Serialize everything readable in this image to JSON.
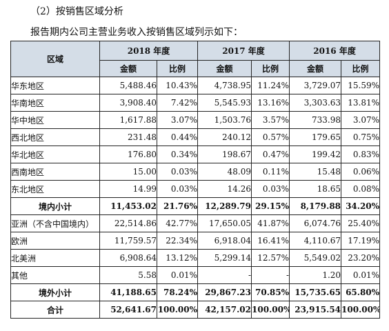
{
  "heading": "（2）按销售区域分析",
  "intro": "报告期内公司主营业务收入按销售区域列示如下：",
  "table": {
    "region_header": "区域",
    "years": [
      "2018 年度",
      "2017 年度",
      "2016 年度"
    ],
    "amount_label": "金额",
    "ratio_label": "比例",
    "rows": [
      {
        "region": "华东地区",
        "cells": [
          "5,488.46",
          "10.43%",
          "4,738.95",
          "11.24%",
          "3,729.07",
          "15.59%"
        ],
        "subtotal": false
      },
      {
        "region": "华南地区",
        "cells": [
          "3,908.40",
          "7.42%",
          "5,545.93",
          "13.16%",
          "3,303.63",
          "13.81%"
        ],
        "subtotal": false
      },
      {
        "region": "华中地区",
        "cells": [
          "1,617.88",
          "3.07%",
          "1,503.76",
          "3.57%",
          "733.98",
          "3.07%"
        ],
        "subtotal": false
      },
      {
        "region": "西北地区",
        "cells": [
          "231.48",
          "0.44%",
          "240.12",
          "0.57%",
          "179.65",
          "0.75%"
        ],
        "subtotal": false
      },
      {
        "region": "华北地区",
        "cells": [
          "176.80",
          "0.34%",
          "198.67",
          "0.47%",
          "199.42",
          "0.83%"
        ],
        "subtotal": false
      },
      {
        "region": "西南地区",
        "cells": [
          "15.00",
          "0.03%",
          "48.09",
          "0.11%",
          "15.48",
          "0.06%"
        ],
        "subtotal": false
      },
      {
        "region": "东北地区",
        "cells": [
          "14.99",
          "0.03%",
          "14.26",
          "0.03%",
          "18.65",
          "0.08%"
        ],
        "subtotal": false
      },
      {
        "region": "境内小计",
        "cells": [
          "11,453.02",
          "21.76%",
          "12,289.79",
          "29.15%",
          "8,179.88",
          "34.20%"
        ],
        "subtotal": true
      },
      {
        "region": "亚洲（不含中国境内）",
        "cells": [
          "22,514.86",
          "42.77%",
          "17,650.05",
          "41.87%",
          "6,074.76",
          "25.40%"
        ],
        "subtotal": false
      },
      {
        "region": "欧洲",
        "cells": [
          "11,759.57",
          "22.34%",
          "6,918.04",
          "16.41%",
          "4,110.67",
          "17.19%"
        ],
        "subtotal": false
      },
      {
        "region": "北美洲",
        "cells": [
          "6,908.64",
          "13.12%",
          "5,299.14",
          "12.57%",
          "5,549.02",
          "23.20%"
        ],
        "subtotal": false
      },
      {
        "region": "其他",
        "cells": [
          "5.58",
          "0.01%",
          "-",
          "-",
          "1.20",
          "0.01%"
        ],
        "subtotal": false
      },
      {
        "region": "境外小计",
        "cells": [
          "41,188.65",
          "78.24%",
          "29,867.23",
          "70.85%",
          "15,735.65",
          "65.80%"
        ],
        "subtotal": true
      },
      {
        "region": "合计",
        "cells": [
          "52,641.67",
          "100.00%",
          "42,157.02",
          "100.00%",
          "23,915.54",
          "100.00%"
        ],
        "subtotal": true
      }
    ]
  }
}
